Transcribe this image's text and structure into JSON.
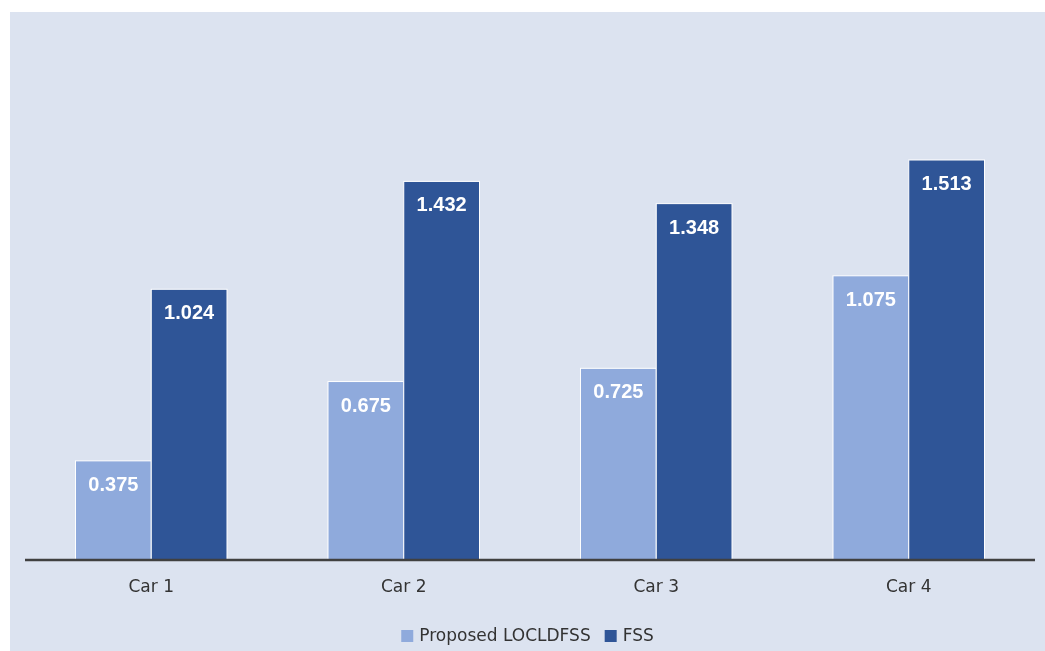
{
  "chart_data": {
    "type": "bar",
    "categories": [
      "Car 1",
      "Car 2",
      "Car 3",
      "Car 4"
    ],
    "series": [
      {
        "name": "Proposed LOCLDFSS",
        "color": "#8faadc",
        "values": [
          0.375,
          0.675,
          0.725,
          1.075
        ]
      },
      {
        "name": "FSS",
        "color": "#2f5597",
        "values": [
          1.024,
          1.432,
          1.348,
          1.513
        ]
      }
    ],
    "data_labels": true,
    "legend": "bottom"
  }
}
